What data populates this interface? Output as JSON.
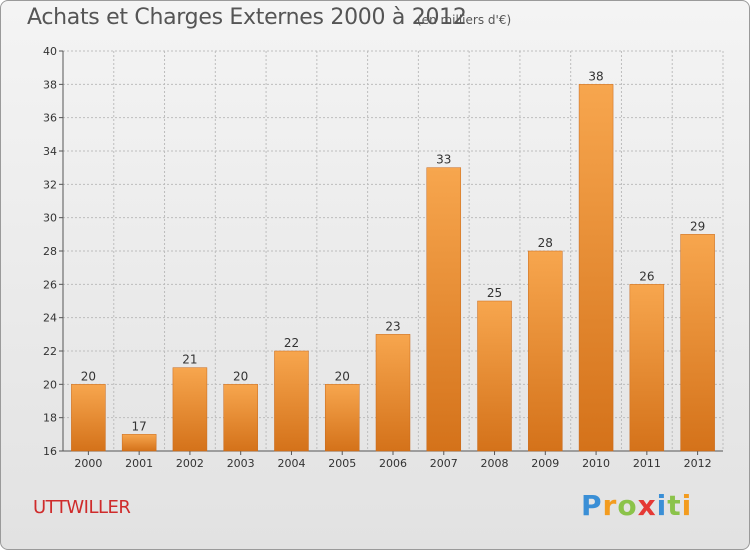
{
  "title": "Achats et Charges Externes 2000 à 2012",
  "subtitle": "(en milliers d'€)",
  "town": "UTTWILLER",
  "logo": {
    "text": "Proxiti",
    "letters": [
      {
        "ch": "P",
        "color": "#3a8fd6"
      },
      {
        "ch": "r",
        "color": "#f39c1f"
      },
      {
        "ch": "o",
        "color": "#8bc34a"
      },
      {
        "ch": "x",
        "color": "#e53935"
      },
      {
        "ch": "i",
        "color": "#3a8fd6"
      },
      {
        "ch": "t",
        "color": "#8bc34a"
      },
      {
        "ch": "i",
        "color": "#f39c1f"
      }
    ]
  },
  "colors": {
    "bar_top": "#f7a64e",
    "bar_bottom": "#d4721a",
    "bar_stroke": "#c8681a",
    "grid": "#bdbdbd",
    "axis": "#555555",
    "text": "#333333",
    "town": "#cf2b2b"
  },
  "chart_data": {
    "type": "bar",
    "title": "Achats et Charges Externes 2000 à 2012",
    "subtitle": "(en milliers d'€)",
    "xlabel": "",
    "ylabel": "",
    "categories": [
      "2000",
      "2001",
      "2002",
      "2003",
      "2004",
      "2005",
      "2006",
      "2007",
      "2008",
      "2009",
      "2010",
      "2011",
      "2012"
    ],
    "values": [
      20,
      17,
      21,
      20,
      22,
      20,
      23,
      33,
      25,
      28,
      38,
      26,
      29
    ],
    "ylim": [
      16,
      40
    ],
    "yticks": [
      16,
      18,
      20,
      22,
      24,
      26,
      28,
      30,
      32,
      34,
      36,
      38,
      40
    ],
    "grid": true
  }
}
